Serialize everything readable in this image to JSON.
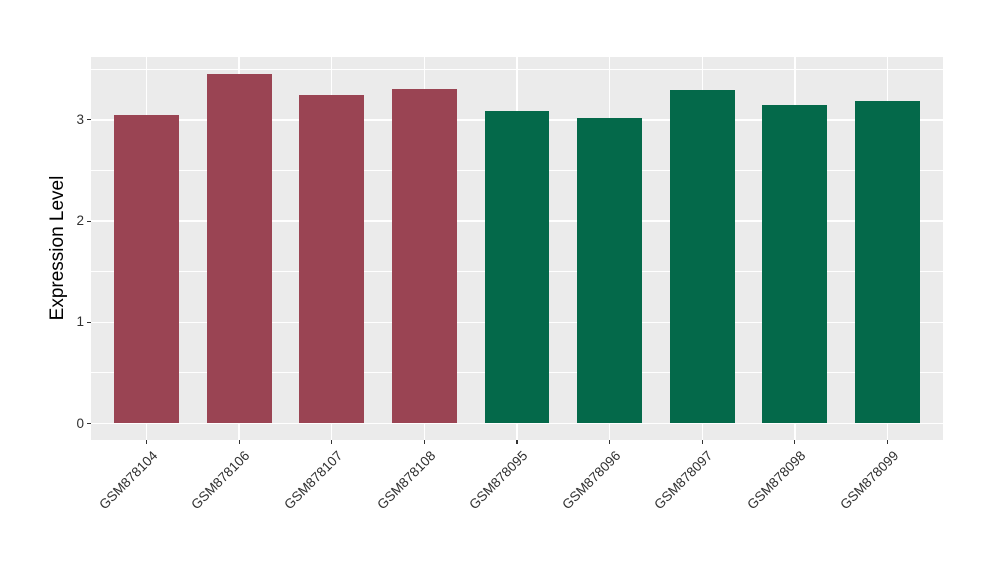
{
  "chart_data": {
    "type": "bar",
    "title": "",
    "xlabel": "",
    "ylabel": "Expression Level",
    "categories": [
      "GSM878104",
      "GSM878106",
      "GSM878107",
      "GSM878108",
      "GSM878095",
      "GSM878096",
      "GSM878097",
      "GSM878098",
      "GSM878099"
    ],
    "values": [
      3.05,
      3.45,
      3.25,
      3.31,
      3.09,
      3.02,
      3.3,
      3.15,
      3.19
    ],
    "bar_colors": [
      "#9A4453",
      "#9A4453",
      "#9A4453",
      "#9A4453",
      "#04694A",
      "#04694A",
      "#04694A",
      "#04694A",
      "#04694A"
    ],
    "group_colors": {
      "left_group": "#9A4453",
      "right_group": "#04694A"
    },
    "ylim": [
      0,
      3.63
    ],
    "yticks": [
      0,
      1,
      2,
      3
    ],
    "yticks_minor": [
      0.5,
      1.5,
      2.5,
      3.5
    ],
    "grid": true,
    "legend_position": "none",
    "panel_background": "#EBEBEB",
    "gridline_color": "#FFFFFF",
    "tick_color": "#333333",
    "tick_label_color": "#303030",
    "bar_width_fraction": 0.7,
    "x_label_rotation_deg": 45
  }
}
